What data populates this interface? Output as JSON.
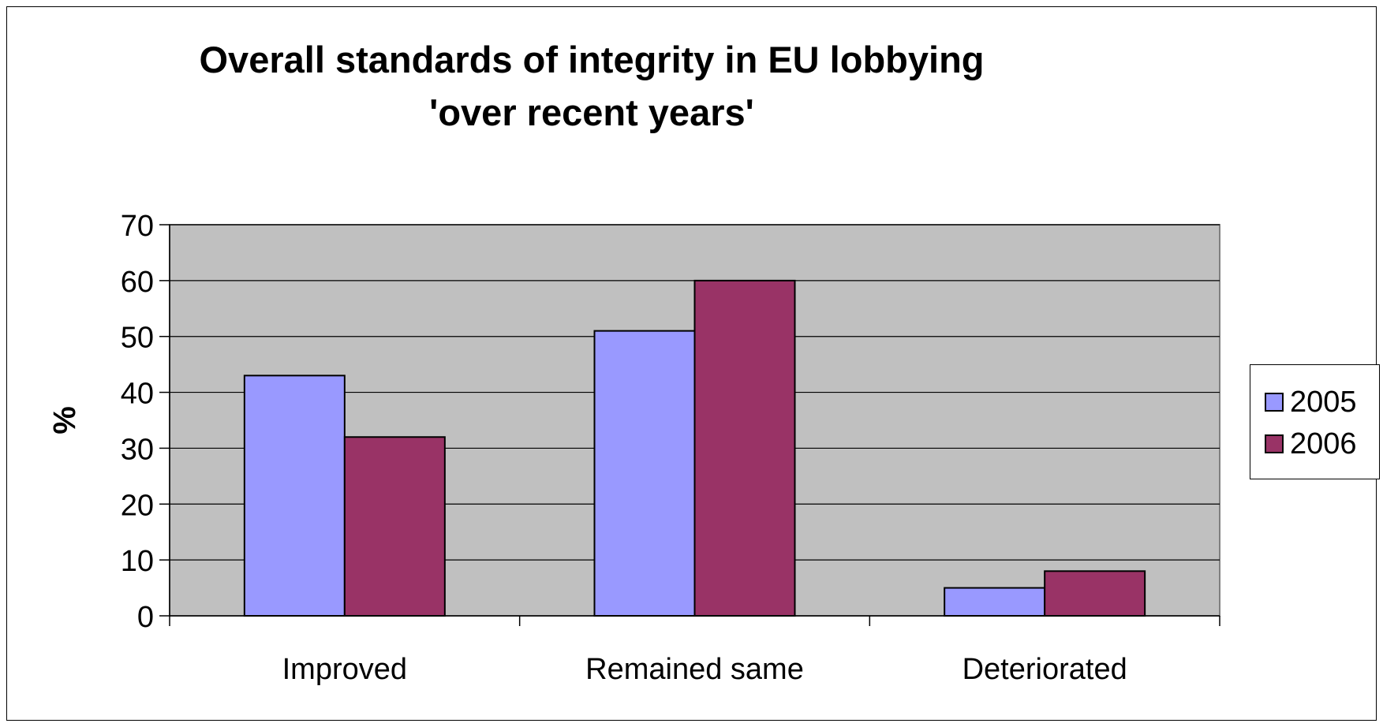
{
  "chart_data": {
    "type": "bar",
    "title": "Overall standards of integrity in EU lobbying 'over recent years'",
    "xlabel": "",
    "ylabel": "%",
    "categories": [
      "Improved",
      "Remained same",
      "Deteriorated"
    ],
    "series": [
      {
        "name": "2005",
        "values": [
          43,
          51,
          5
        ]
      },
      {
        "name": "2006",
        "values": [
          32,
          60,
          8
        ]
      }
    ],
    "ylim": [
      0,
      70
    ],
    "yticks": [
      0,
      10,
      20,
      30,
      40,
      50,
      60,
      70
    ],
    "grid": true,
    "legend_position": "right",
    "colors": {
      "plot_background": "#c0c0c0",
      "series": [
        "#9999ff",
        "#993366"
      ],
      "gridline": "#000000"
    }
  }
}
